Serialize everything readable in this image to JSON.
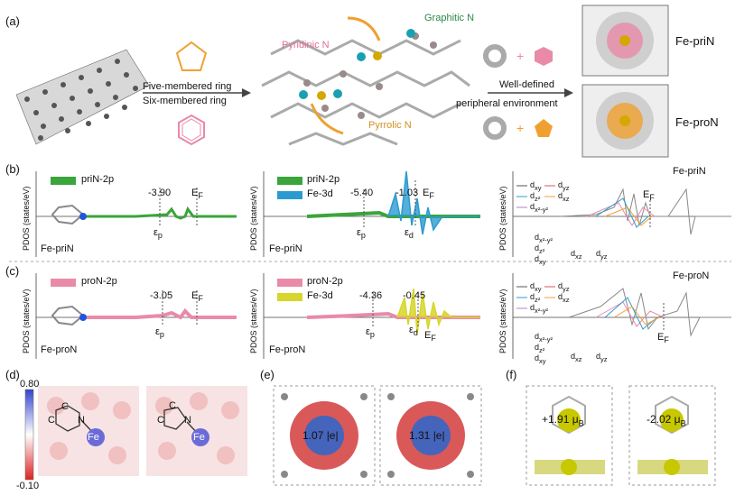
{
  "panel_labels": {
    "a": "(a)",
    "b": "(b)",
    "c": "(c)",
    "d": "(d)",
    "e": "(e)",
    "f": "(f)"
  },
  "panel_a": {
    "arrow1_line1": "Five-membered ring",
    "arrow1_line2": "Six-membered ring",
    "graphitic": "Graphitic N",
    "pyridinic": "Pyridinic N",
    "pyrrolic": "Pyrrolic N",
    "arrow2_line1": "Well-defined",
    "arrow2_line2": "peripheral environment",
    "model1": "Fe-priN",
    "model2": "Fe-proN"
  },
  "pdos_ylabel": "PDOS (states/eV)",
  "panel_b": {
    "legend1": "priN-2p",
    "left_val": "-3.90",
    "ef": "E",
    "ef_sub": "F",
    "eps": "ε",
    "eps_p": "p",
    "eps_d": "d",
    "name": "Fe-priN",
    "legend2a": "priN-2p",
    "legend2b": "Fe-3d",
    "mid_val1": "-5.40",
    "mid_val2": "-1.03",
    "right_title": "Fe-priN"
  },
  "panel_c": {
    "legend1": "proN-2p",
    "left_val": "-3.05",
    "name": "Fe-proN",
    "legend2a": "proN-2p",
    "legend2b": "Fe-3d",
    "mid_val1": "-4.36",
    "mid_val2": "-0.45",
    "right_title": "Fe-proN"
  },
  "orbitals": {
    "dxy": "d",
    "dyz": "d",
    "dz2": "d",
    "dxz": "d",
    "dx2y2": "d",
    "s_xy": "xy",
    "s_yz": "yz",
    "s_z2": "z²",
    "s_xz": "xz",
    "s_x2y2": "x²-y²"
  },
  "panel_d": {
    "max": "0.80",
    "min": "-0.10",
    "fe": "Fe",
    "n": "N",
    "c": "C"
  },
  "panel_e": {
    "v1": "1.07 |e|",
    "v2": "1.31 |e|"
  },
  "panel_f": {
    "v1": "+1.91 μ",
    "v2": "-2.02 μ",
    "sub": "B"
  },
  "colors": {
    "green": "#3aa53a",
    "blue": "#2a9bd0",
    "pink": "#e98aa8",
    "yellow": "#d7d62a",
    "orange": "#f0a030"
  }
}
